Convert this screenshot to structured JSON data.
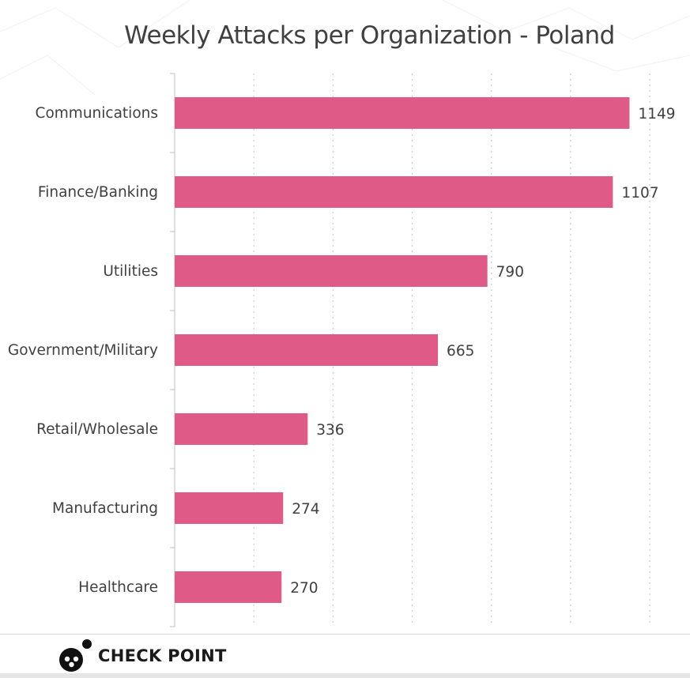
{
  "chart_data": {
    "type": "bar",
    "orientation": "horizontal",
    "title": "Weekly Attacks per Organization - Poland",
    "xlabel": "",
    "ylabel": "",
    "categories": [
      "Communications",
      "Finance/Banking",
      "Utilities",
      "Government/Military",
      "Retail/Wholesale",
      "Manufacturing",
      "Healthcare"
    ],
    "values": [
      1149,
      1107,
      790,
      665,
      336,
      274,
      270
    ],
    "xlim": [
      0,
      1200
    ],
    "grid": true,
    "grid_style": "dotted-vertical",
    "legend": "none",
    "bar_color": "#e05a87"
  },
  "logo": {
    "text": "CHECK POINT",
    "icon": "check-point-logo-icon"
  }
}
